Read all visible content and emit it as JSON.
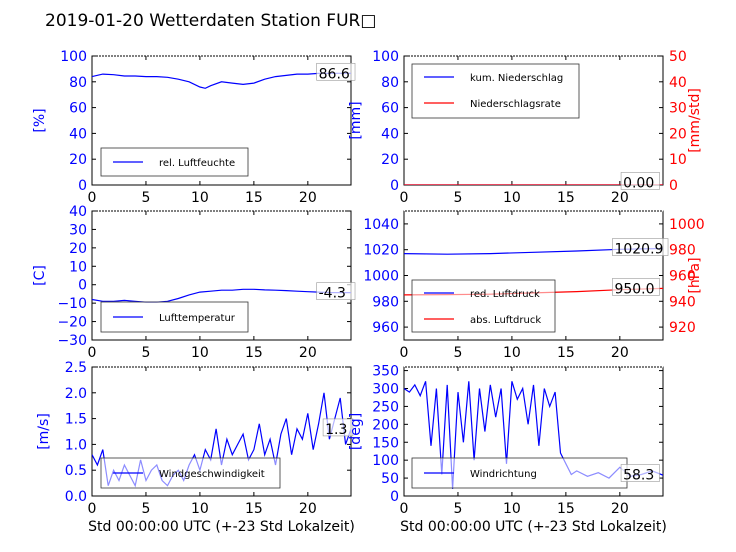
{
  "title": "2019-01-20 Wetterdaten Station FUR□",
  "colors": {
    "blue": "#0000ff",
    "red": "#ff0000",
    "black": "#000000"
  },
  "chart_data": [
    {
      "type": "line",
      "id": "humidity",
      "ylabel": "[%]",
      "xlabel": "",
      "xlim": [
        0,
        24
      ],
      "ylim": [
        0,
        100
      ],
      "xticks": [
        "0",
        "5",
        "10",
        "15",
        "20"
      ],
      "yticks": [
        "0",
        "20",
        "40",
        "60",
        "80",
        "100"
      ],
      "legend": "bottom-left",
      "annotation": "86.6",
      "series": [
        {
          "name": "rel. Luftfeuchte",
          "axis": "left",
          "x": [
            0,
            1,
            2,
            3,
            4,
            5,
            6,
            7,
            8,
            9,
            10,
            10.5,
            11,
            12,
            13,
            14,
            15,
            16,
            17,
            18,
            19,
            20,
            21,
            22,
            23,
            24
          ],
          "y": [
            84,
            86,
            85.5,
            84.5,
            84.5,
            84,
            84,
            83.5,
            82,
            80,
            76,
            75,
            77,
            80,
            79,
            78,
            79,
            82,
            84,
            85,
            86,
            86,
            86.5,
            86.5,
            86.6,
            86.6
          ]
        }
      ]
    },
    {
      "type": "line",
      "id": "precipitation",
      "ylabel": "[mm]",
      "ylabel_right": "[mm/std]",
      "xlabel": "",
      "xlim": [
        0,
        24
      ],
      "ylim": [
        0,
        100
      ],
      "ylim_right": [
        0,
        50
      ],
      "xticks": [
        "0",
        "5",
        "10",
        "15",
        "20"
      ],
      "yticks": [
        "0",
        "20",
        "40",
        "60",
        "80",
        "100"
      ],
      "yticks_right": [
        "0",
        "10",
        "20",
        "30",
        "40",
        "50"
      ],
      "legend": "top-left",
      "annotation": "0.00",
      "series": [
        {
          "name": "kum. Niederschlag",
          "axis": "left",
          "x": [
            0,
            24
          ],
          "y": [
            0,
            0
          ]
        },
        {
          "name": "Niederschlagsrate",
          "axis": "right",
          "x": [
            0,
            24
          ],
          "y": [
            0,
            0
          ]
        }
      ]
    },
    {
      "type": "line",
      "id": "temperature",
      "ylabel": "[C]",
      "xlabel": "",
      "xlim": [
        0,
        24
      ],
      "ylim": [
        -30,
        40
      ],
      "xticks": [
        "0",
        "5",
        "10",
        "15",
        "20"
      ],
      "yticks": [
        "−30",
        "−20",
        "−10",
        "0",
        "10",
        "20",
        "30",
        "40"
      ],
      "legend": "bottom-left",
      "annotation": "-4.3",
      "series": [
        {
          "name": "Lufttemperatur",
          "axis": "left",
          "x": [
            0,
            1,
            2,
            3,
            4,
            5,
            6,
            7,
            8,
            9,
            10,
            11,
            12,
            13,
            14,
            15,
            16,
            17,
            18,
            19,
            20,
            21,
            22,
            23,
            24
          ],
          "y": [
            -8,
            -9,
            -9,
            -8.5,
            -9,
            -9.5,
            -9.5,
            -9,
            -7.5,
            -5.5,
            -4,
            -3.5,
            -3,
            -3,
            -2.5,
            -2.5,
            -2.8,
            -3,
            -3.2,
            -3.5,
            -3.8,
            -4,
            -4.2,
            -4.3,
            -4.3
          ]
        }
      ]
    },
    {
      "type": "line",
      "id": "pressure",
      "ylabel": "",
      "ylabel_right": "[hPa]",
      "xlabel": "",
      "xlim": [
        0,
        24
      ],
      "ylim": [
        950,
        1050
      ],
      "ylim_right": [
        910,
        1010
      ],
      "xticks": [
        "0",
        "5",
        "10",
        "15",
        "20"
      ],
      "yticks": [
        "960",
        "980",
        "1000",
        "1020",
        "1040"
      ],
      "yticks_right": [
        "920",
        "940",
        "960",
        "980",
        "1000"
      ],
      "legend": "bottom-left",
      "annotations": [
        "1020.9",
        "950.0"
      ],
      "series": [
        {
          "name": "red. Luftdruck",
          "axis": "left",
          "x": [
            0,
            4,
            8,
            12,
            16,
            20,
            24
          ],
          "y": [
            1017,
            1016.5,
            1017,
            1018,
            1019,
            1020.3,
            1020.9
          ]
        },
        {
          "name": "abs. Luftdruck",
          "axis": "right",
          "x": [
            0,
            4,
            8,
            12,
            16,
            20,
            24
          ],
          "y": [
            945,
            945.2,
            945.5,
            946.5,
            947.5,
            949,
            950
          ]
        }
      ]
    },
    {
      "type": "line",
      "id": "windspeed",
      "ylabel": "[m/s]",
      "xlabel": "Std 00:00:00 UTC (+-23 Std Lokalzeit)",
      "xlim": [
        0,
        24
      ],
      "ylim": [
        0,
        2.5
      ],
      "xticks": [
        "0",
        "5",
        "10",
        "15",
        "20"
      ],
      "yticks": [
        "0.0",
        "0.5",
        "1.0",
        "1.5",
        "2.0",
        "2.5"
      ],
      "legend": "bottom-left",
      "annotation": "1.3",
      "series": [
        {
          "name": "Windgeschwindigkeit",
          "axis": "left",
          "x": [
            0,
            0.5,
            1,
            1.5,
            2,
            2.5,
            3,
            3.5,
            4,
            4.5,
            5,
            5.5,
            6,
            6.5,
            7,
            7.5,
            8,
            8.5,
            9,
            9.5,
            10,
            10.5,
            11,
            11.5,
            12,
            12.5,
            13,
            13.5,
            14,
            14.5,
            15,
            15.5,
            16,
            16.5,
            17,
            17.5,
            18,
            18.5,
            19,
            19.5,
            20,
            20.5,
            21,
            21.5,
            22,
            22.5,
            23,
            23.5,
            24
          ],
          "y": [
            0.8,
            0.6,
            0.9,
            0.2,
            0.5,
            0.3,
            0.6,
            0.4,
            0.2,
            0.7,
            0.3,
            0.5,
            0.6,
            0.3,
            0.2,
            0.4,
            0.5,
            0.3,
            0.6,
            0.8,
            0.5,
            0.9,
            0.7,
            1.3,
            0.6,
            1.1,
            0.8,
            1.0,
            1.2,
            0.7,
            0.9,
            1.4,
            0.8,
            1.1,
            0.6,
            1.2,
            1.5,
            0.8,
            1.3,
            1.1,
            1.6,
            0.9,
            1.4,
            2.0,
            1.1,
            1.5,
            1.9,
            1.0,
            1.3
          ]
        }
      ]
    },
    {
      "type": "line",
      "id": "winddirection",
      "ylabel": "[deg]",
      "xlabel": "Std 00:00:00 UTC (+-23 Std Lokalzeit)",
      "xlim": [
        0,
        24
      ],
      "ylim": [
        0,
        360
      ],
      "xticks": [
        "0",
        "5",
        "10",
        "15",
        "20"
      ],
      "yticks": [
        "0",
        "50",
        "100",
        "150",
        "200",
        "250",
        "300",
        "350"
      ],
      "legend": "bottom-left",
      "annotation": "58.3",
      "series": [
        {
          "name": "Windrichtung",
          "axis": "left",
          "x": [
            0,
            0.5,
            1,
            1.5,
            2,
            2.5,
            3,
            3.5,
            4,
            4.5,
            5,
            5.5,
            6,
            6.5,
            7,
            7.5,
            8,
            8.5,
            9,
            9.5,
            10,
            10.5,
            11,
            11.5,
            12,
            12.5,
            13,
            13.5,
            14,
            14.5,
            15,
            15.5,
            16,
            17,
            18,
            19,
            20,
            21,
            22,
            23,
            24
          ],
          "y": [
            300,
            290,
            310,
            280,
            320,
            140,
            300,
            60,
            310,
            20,
            290,
            150,
            320,
            100,
            300,
            180,
            310,
            220,
            300,
            90,
            320,
            270,
            300,
            200,
            310,
            140,
            300,
            250,
            290,
            120,
            90,
            60,
            70,
            55,
            65,
            50,
            80,
            55,
            60,
            70,
            58
          ]
        }
      ]
    }
  ]
}
